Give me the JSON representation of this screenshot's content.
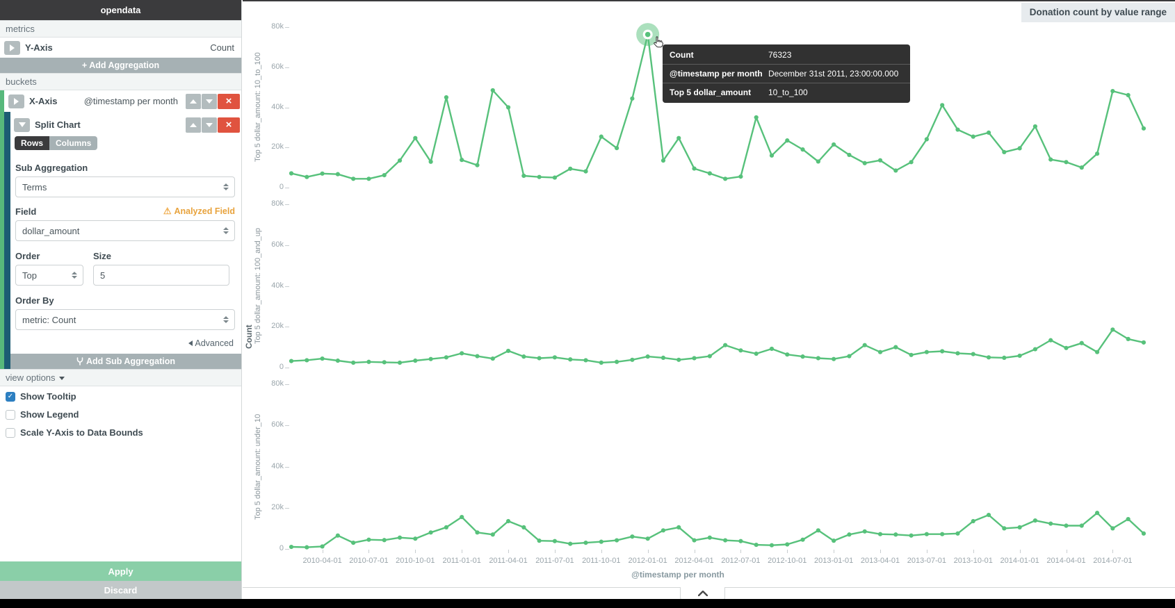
{
  "sidebar": {
    "title": "opendata",
    "metrics_header": "metrics",
    "y_axis": {
      "label": "Y-Axis",
      "value": "Count"
    },
    "add_aggregation_icon": "+",
    "add_aggregation_label": "Add Aggregation",
    "buckets_header": "buckets",
    "x_axis": {
      "label": "X-Axis",
      "value": "@timestamp per month"
    },
    "split_chart": {
      "label": "Split Chart",
      "toggle": {
        "rows": "Rows",
        "columns": "Columns",
        "selected": "Rows"
      },
      "sub_aggregation_label": "Sub Aggregation",
      "sub_aggregation_value": "Terms",
      "field_label": "Field",
      "field_warning": "Analyzed Field",
      "field_warning_icon": "⚠",
      "field_value": "dollar_amount",
      "order_label": "Order",
      "order_value": "Top",
      "size_label": "Size",
      "size_value": "5",
      "order_by_label": "Order By",
      "order_by_value": "metric: Count",
      "advanced_label": "Advanced"
    },
    "add_sub_aggregation_label": "Add Sub Aggregation",
    "view_options_label": "view options",
    "checkboxes": [
      {
        "label": "Show Tooltip",
        "checked": true
      },
      {
        "label": "Show Legend",
        "checked": false
      },
      {
        "label": "Scale Y-Axis to Data Bounds",
        "checked": false
      }
    ],
    "apply_label": "Apply",
    "discard_label": "Discard",
    "remove_icon": "×"
  },
  "chart_header": {
    "title": "Donation count by value range"
  },
  "tooltip": {
    "rows": [
      {
        "label": "Count",
        "value": "76323"
      },
      {
        "label": "@timestamp per month",
        "value": "December 31st 2011, 23:00:00.000"
      },
      {
        "label": "Top 5 dollar_amount",
        "value": "10_to_100"
      }
    ]
  },
  "chart_data": {
    "type": "line",
    "title": "Donation count by value range",
    "xlabel": "@timestamp per month",
    "ylabel": "Count",
    "ylim": [
      0,
      80000
    ],
    "y_ticks": [
      "0",
      "20k",
      "40k",
      "60k",
      "80k"
    ],
    "line_color": "#57c17b",
    "grid": false,
    "legend": "hidden",
    "split": "rows",
    "x": [
      "2010-02-01",
      "2010-03-01",
      "2010-04-01",
      "2010-05-01",
      "2010-06-01",
      "2010-07-01",
      "2010-08-01",
      "2010-09-01",
      "2010-10-01",
      "2010-11-01",
      "2010-12-01",
      "2011-01-01",
      "2011-02-01",
      "2011-03-01",
      "2011-04-01",
      "2011-05-01",
      "2011-06-01",
      "2011-07-01",
      "2011-08-01",
      "2011-09-01",
      "2011-10-01",
      "2011-11-01",
      "2011-12-01",
      "2012-01-01",
      "2012-02-01",
      "2012-03-01",
      "2012-04-01",
      "2012-05-01",
      "2012-06-01",
      "2012-07-01",
      "2012-08-01",
      "2012-09-01",
      "2012-10-01",
      "2012-11-01",
      "2012-12-01",
      "2013-01-01",
      "2013-02-01",
      "2013-03-01",
      "2013-04-01",
      "2013-05-01",
      "2013-06-01",
      "2013-07-01",
      "2013-08-01",
      "2013-09-01",
      "2013-10-01",
      "2013-11-01",
      "2013-12-01",
      "2014-01-01",
      "2014-02-01",
      "2014-03-01",
      "2014-04-01",
      "2014-05-01",
      "2014-06-01",
      "2014-07-01",
      "2014-08-01",
      "2014-09-01"
    ],
    "x_tick_labels": [
      "2010-04-01",
      "2010-07-01",
      "2010-10-01",
      "2011-01-01",
      "2011-04-01",
      "2011-07-01",
      "2011-10-01",
      "2012-01-01",
      "2012-04-01",
      "2012-07-01",
      "2012-10-01",
      "2013-01-01",
      "2013-04-01",
      "2013-07-01",
      "2013-10-01",
      "2014-01-01",
      "2014-04-01",
      "2014-07-01"
    ],
    "series": [
      {
        "name": "Top 5 dollar_amount: 10_to_100",
        "values": [
          7100,
          5300,
          7000,
          6700,
          4400,
          4400,
          6200,
          13500,
          24700,
          12900,
          45000,
          13800,
          11200,
          48500,
          40000,
          5900,
          5300,
          5000,
          9400,
          8100,
          25400,
          19700,
          44400,
          76323,
          13500,
          24700,
          9500,
          7100,
          4400,
          5500,
          35000,
          16000,
          23500,
          19000,
          13000,
          21500,
          16300,
          12200,
          13600,
          8500,
          12700,
          24100,
          41100,
          28900,
          25400,
          27400,
          17700,
          19600,
          30500,
          14000,
          12700,
          10000,
          16900,
          48100,
          46100,
          29500
        ]
      },
      {
        "name": "Top 5 dollar_amount: 100_and_up",
        "values": [
          3200,
          3600,
          4400,
          3400,
          2400,
          2800,
          2600,
          2400,
          3400,
          4200,
          5000,
          7000,
          5600,
          4400,
          8200,
          5400,
          4600,
          5000,
          4000,
          3600,
          2400,
          2800,
          3800,
          5400,
          4800,
          3800,
          4600,
          5600,
          11000,
          8400,
          6800,
          9200,
          6400,
          5400,
          4600,
          4200,
          5600,
          11000,
          7600,
          10000,
          6200,
          7600,
          8000,
          7000,
          6600,
          5000,
          4800,
          5800,
          9000,
          13400,
          9600,
          12000,
          7600,
          18600,
          14000,
          12300
        ]
      },
      {
        "name": "Top 5 dollar_amount: under_10",
        "values": [
          1000,
          800,
          1200,
          6500,
          3000,
          4500,
          4300,
          5500,
          5000,
          8000,
          10500,
          15500,
          8000,
          7000,
          13500,
          10500,
          4000,
          3800,
          2500,
          3000,
          3500,
          4200,
          6000,
          5000,
          9000,
          10500,
          4200,
          5500,
          4200,
          3800,
          2000,
          1800,
          2200,
          4500,
          9000,
          4000,
          7000,
          8500,
          7200,
          7000,
          6500,
          7200,
          7200,
          7500,
          13500,
          16500,
          10000,
          10500,
          13800,
          12300,
          11300,
          11300,
          17500,
          10000,
          14500,
          7500
        ]
      }
    ],
    "highlighted_point": {
      "series": "Top 5 dollar_amount: 10_to_100",
      "x": "2012-01-01",
      "value": 76323
    }
  }
}
